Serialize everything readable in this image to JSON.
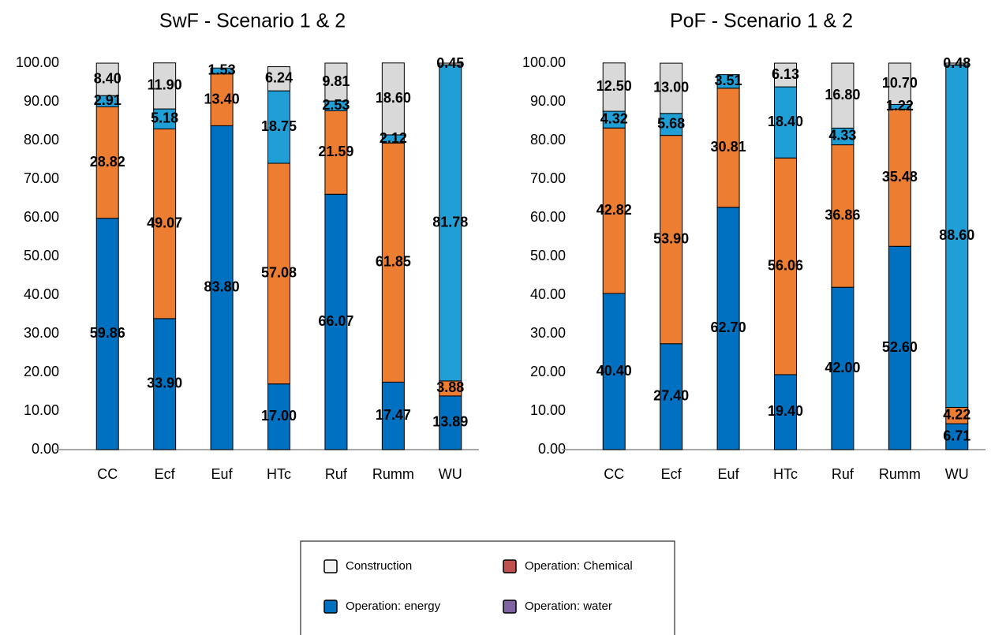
{
  "chart_data": [
    {
      "type": "bar",
      "stacked": true,
      "title": "SwF - Scenario 1 & 2",
      "categories": [
        "CC",
        "Ecf",
        "Euf",
        "HTc",
        "Ruf",
        "Rumm",
        "WU"
      ],
      "series": [
        {
          "color": "#0070c0",
          "values": [
            59.86,
            33.9,
            83.8,
            17,
            66.07,
            17.47,
            13.89
          ],
          "value_labels": [
            "59.86",
            "33.90",
            "83.80",
            "17.00",
            "66.07",
            "17.47",
            "13.89"
          ]
        },
        {
          "color": "#ed7d31",
          "values": [
            28.82,
            49.07,
            13.4,
            57.08,
            21.59,
            61.85,
            3.88
          ],
          "value_labels": [
            "28.82",
            "49.07",
            "13.40",
            "57.08",
            "21.59",
            "61.85",
            "3.88"
          ]
        },
        {
          "color": "#1f9fd6",
          "values": [
            2.91,
            5.18,
            1.53,
            18.75,
            2.53,
            2.12,
            81.78
          ],
          "value_labels": [
            "2.91",
            "5.18",
            "1.53",
            "18.75",
            "2.53",
            "2.12",
            "81.78"
          ]
        },
        {
          "color": "#d9d9d9",
          "values": [
            8.4,
            11.9,
            null,
            6.24,
            9.81,
            18.6,
            0.45
          ],
          "value_labels": [
            "8.40",
            "11.90",
            null,
            "6.24",
            "9.81",
            "18.60",
            "0.45"
          ]
        }
      ],
      "ylim": [
        0,
        100
      ],
      "yticks": [
        {
          "value": 0,
          "label": "0.00"
        },
        {
          "value": 10,
          "label": "10.00"
        },
        {
          "value": 20,
          "label": "20.00"
        },
        {
          "value": 30,
          "label": "30.00"
        },
        {
          "value": 40,
          "label": "40.00"
        },
        {
          "value": 50,
          "label": "50.00"
        },
        {
          "value": 60,
          "label": "60.00"
        },
        {
          "value": 70,
          "label": "70.00"
        },
        {
          "value": 80,
          "label": "80.00"
        },
        {
          "value": 90,
          "label": "90.00"
        },
        {
          "value": 100,
          "label": "100.00"
        }
      ]
    },
    {
      "type": "bar",
      "stacked": true,
      "title": "PoF - Scenario 1 & 2",
      "categories": [
        "CC",
        "Ecf",
        "Euf",
        "HTc",
        "Ruf",
        "Rumm",
        "WU"
      ],
      "series": [
        {
          "color": "#0070c0",
          "values": [
            40.4,
            27.4,
            62.7,
            19.4,
            42,
            52.6,
            6.71
          ],
          "value_labels": [
            "40.40",
            "27.40",
            "62.70",
            "19.40",
            "42.00",
            "52.60",
            "6.71"
          ]
        },
        {
          "color": "#ed7d31",
          "values": [
            42.82,
            53.9,
            30.81,
            56.06,
            36.86,
            35.48,
            4.22
          ],
          "value_labels": [
            "42.82",
            "53.90",
            "30.81",
            "56.06",
            "36.86",
            "35.48",
            "4.22"
          ]
        },
        {
          "color": "#1f9fd6",
          "values": [
            4.32,
            5.68,
            3.51,
            18.4,
            4.33,
            1.22,
            88.6
          ],
          "value_labels": [
            "4.32",
            "5.68",
            "3.51",
            "18.40",
            "4.33",
            "1.22",
            "88.60"
          ]
        },
        {
          "color": "#d9d9d9",
          "values": [
            12.5,
            13,
            null,
            6.13,
            16.8,
            10.7,
            0.48
          ],
          "value_labels": [
            "12.50",
            "13.00",
            null,
            "6.13",
            "16.80",
            "10.70",
            "0.48"
          ]
        }
      ],
      "ylim": [
        0,
        100
      ],
      "yticks": [
        {
          "value": 0,
          "label": "0.00"
        },
        {
          "value": 10,
          "label": "10.00"
        },
        {
          "value": 20,
          "label": "20.00"
        },
        {
          "value": 30,
          "label": "30.00"
        },
        {
          "value": 40,
          "label": "40.00"
        },
        {
          "value": 50,
          "label": "50.00"
        },
        {
          "value": 60,
          "label": "60.00"
        },
        {
          "value": 70,
          "label": "70.00"
        },
        {
          "value": 80,
          "label": "80.00"
        },
        {
          "value": 90,
          "label": "90.00"
        },
        {
          "value": 100,
          "label": "100.00"
        }
      ]
    }
  ],
  "legend": {
    "items": [
      {
        "name": "Construction",
        "color": "#f2f2f2"
      },
      {
        "name": "Operation: Chemical",
        "color": "#c0504d"
      },
      {
        "name": "Operation: energy",
        "color": "#0070c0"
      },
      {
        "name": "Operation: water",
        "color": "#8064a2"
      }
    ]
  }
}
